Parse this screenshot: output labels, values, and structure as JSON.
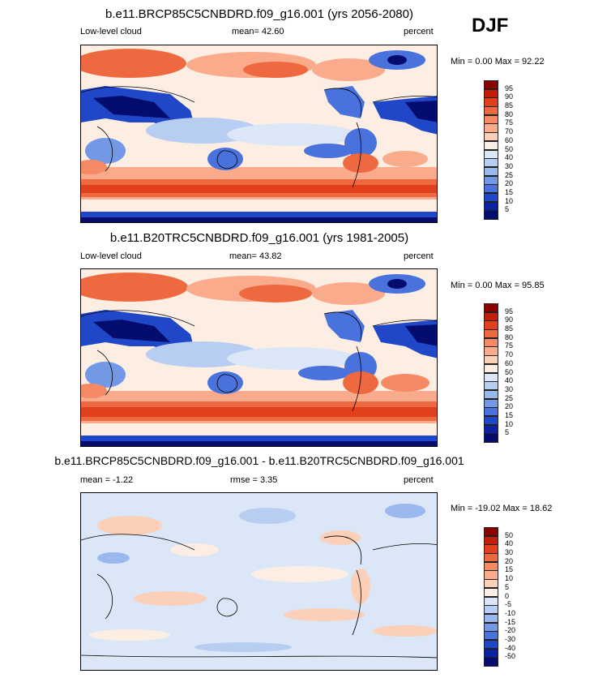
{
  "season": "DJF",
  "panels": [
    {
      "title": "b.e11.BRCP85C5CNBDRD.f09_g16.001 (yrs 2056-2080)",
      "left_label": "Low-level cloud",
      "center_label": "mean=  42.60",
      "right_label": "percent",
      "minmax": "Min =   0.00 Max =  92.22",
      "colorbar": {
        "labels": [
          "95",
          "90",
          "85",
          "80",
          "75",
          "70",
          "60",
          "50",
          "40",
          "30",
          "25",
          "20",
          "15",
          "10",
          "5"
        ],
        "colors": [
          "#8b0000",
          "#c21e0a",
          "#e0401c",
          "#ee6840",
          "#f58a64",
          "#f9ab8b",
          "#fcd0b8",
          "#fdeee4",
          "#dbe6f7",
          "#b7cdf2",
          "#9ab8ee",
          "#7399e6",
          "#4a72dc",
          "#1f47c8",
          "#0b22a4",
          "#040c6e"
        ]
      }
    },
    {
      "title": "b.e11.B20TRC5CNBDRD.f09_g16.001 (yrs 1981-2005)",
      "left_label": "Low-level cloud",
      "center_label": "mean=  43.82",
      "right_label": "percent",
      "minmax": "Min =   0.00 Max =  95.85",
      "colorbar": {
        "labels": [
          "95",
          "90",
          "85",
          "80",
          "75",
          "70",
          "60",
          "50",
          "40",
          "30",
          "25",
          "20",
          "15",
          "10",
          "5"
        ],
        "colors": [
          "#8b0000",
          "#c21e0a",
          "#e0401c",
          "#ee6840",
          "#f58a64",
          "#f9ab8b",
          "#fcd0b8",
          "#fdeee4",
          "#dbe6f7",
          "#b7cdf2",
          "#9ab8ee",
          "#7399e6",
          "#4a72dc",
          "#1f47c8",
          "#0b22a4",
          "#040c6e"
        ]
      }
    },
    {
      "title": "b.e11.BRCP85C5CNBDRD.f09_g16.001 - b.e11.B20TRC5CNBDRD.f09_g16.001",
      "left_label": "mean =  -1.22",
      "center_label": "rmse =  3.35",
      "right_label": "percent",
      "minmax": "Min = -19.02 Max =  18.62",
      "colorbar": {
        "labels": [
          "50",
          "40",
          "30",
          "20",
          "15",
          "10",
          "5",
          "0",
          "-5",
          "-10",
          "-15",
          "-20",
          "-30",
          "-40",
          "-50"
        ],
        "colors": [
          "#8b0000",
          "#c21e0a",
          "#e0401c",
          "#ee6840",
          "#f58a64",
          "#f9ab8b",
          "#fcd0b8",
          "#fdeee4",
          "#dbe6f7",
          "#b7cdf2",
          "#9ab8ee",
          "#7399e6",
          "#4a72dc",
          "#1f47c8",
          "#0b22a4",
          "#040c6e"
        ]
      }
    }
  ]
}
